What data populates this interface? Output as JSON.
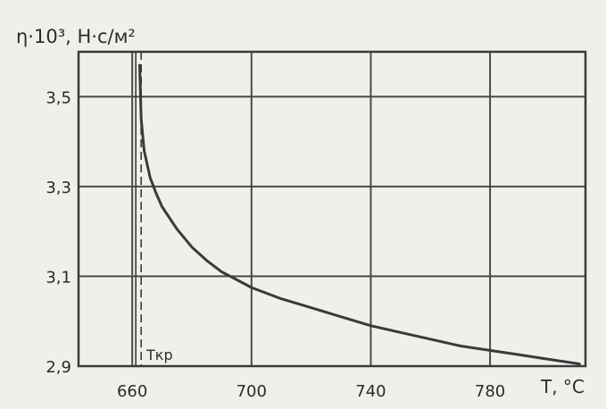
{
  "chart_data": {
    "type": "line",
    "ylabel": "η·10³, Н·с/м²",
    "xlabel": "T, °C",
    "x_ticks": [
      "660",
      "700",
      "740",
      "780"
    ],
    "y_ticks": [
      "2,9",
      "3,1",
      "3,3",
      "3,5"
    ],
    "xlim": [
      642,
      812
    ],
    "ylim": [
      2.9,
      3.6
    ],
    "grid": true,
    "annotation": "Tкр",
    "critical_temperature": 663,
    "series": [
      {
        "x": [
          662.5,
          663,
          664,
          666,
          668,
          670,
          675,
          680,
          685,
          690,
          700,
          710,
          720,
          730,
          740,
          750,
          760,
          770,
          780,
          790,
          800,
          810
        ],
        "y": [
          3.57,
          3.45,
          3.38,
          3.32,
          3.285,
          3.255,
          3.205,
          3.165,
          3.135,
          3.11,
          3.075,
          3.05,
          3.03,
          3.01,
          2.99,
          2.975,
          2.96,
          2.945,
          2.935,
          2.925,
          2.915,
          2.905
        ]
      }
    ],
    "colors": {
      "line": "#3a3a3a",
      "grid": "#4a4a4a",
      "background": "#f1efea"
    }
  }
}
